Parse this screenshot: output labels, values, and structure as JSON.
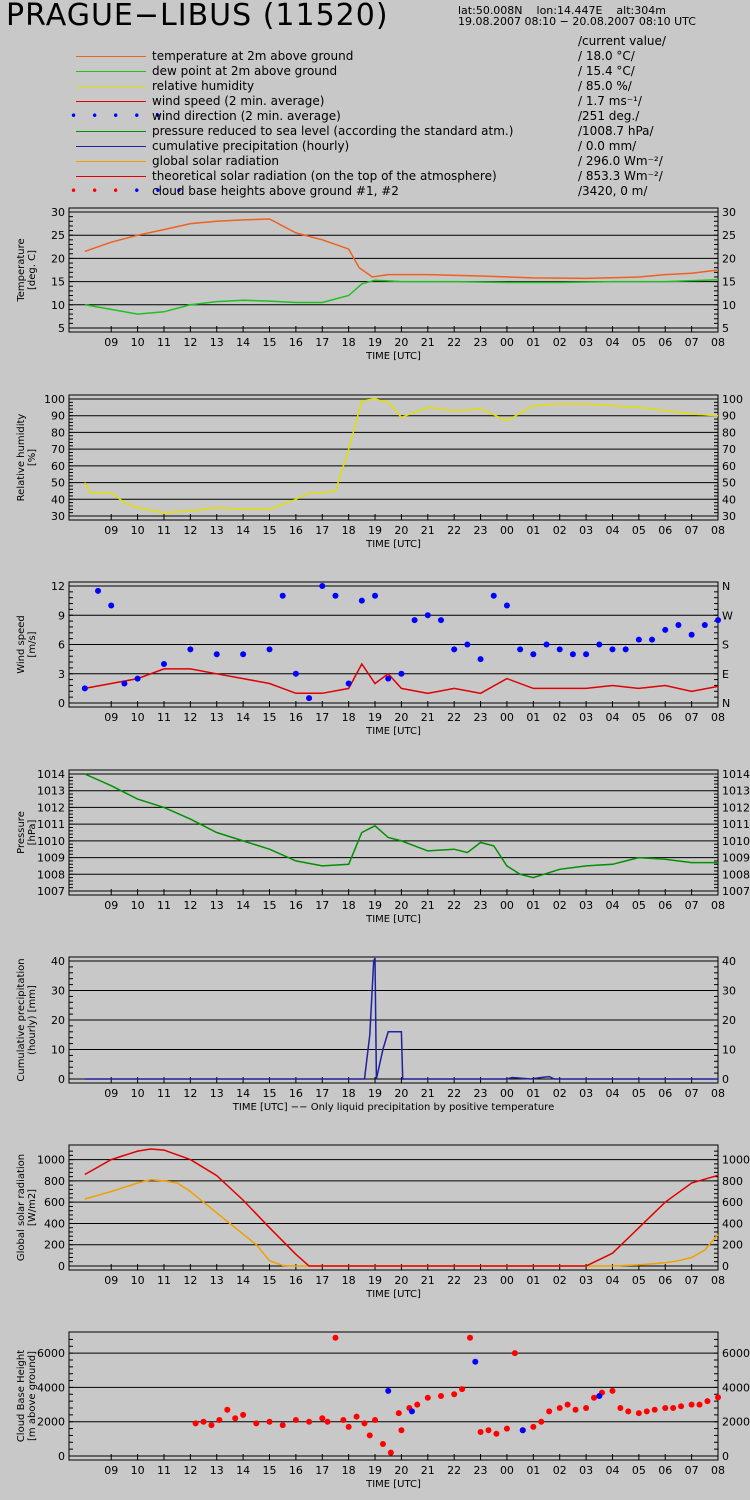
{
  "header": {
    "station": "PRAGUE−LIBUS (11520)",
    "coords": "lat:50.008N    lon:14.447E    alt:304m",
    "period": "19.08.2007 08:10 − 20.08.2007 08:10 UTC",
    "current_value_label": "/current value/"
  },
  "legend": [
    {
      "label": "temperature at 2m above ground",
      "value": "/ 18.0 °C/",
      "color": "#f06020",
      "style": "line"
    },
    {
      "label": "dew point at 2m above ground",
      "value": "/ 15.4 °C/",
      "color": "#20c020",
      "style": "line"
    },
    {
      "label": "relative humidity",
      "value": "/ 85.0 %/",
      "color": "#e0e000",
      "style": "line"
    },
    {
      "label": "wind speed (2 min. average)",
      "value": "/ 1.7 ms⁻¹/",
      "color": "#e00000",
      "style": "line"
    },
    {
      "label": "wind direction (2 min. average)",
      "value": "/251 deg./",
      "color": "#0000ff",
      "style": "dots"
    },
    {
      "label": "pressure reduced to sea level (according the standard atm.)",
      "value": "/1008.7 hPa/",
      "color": "#009000",
      "style": "line"
    },
    {
      "label": "cumulative precipitation (hourly)",
      "value": "/  0.0 mm/",
      "color": "#2020a0",
      "style": "line"
    },
    {
      "label": "global solar radiation",
      "value": "/ 296.0 Wm⁻²/",
      "color": "#f0a000",
      "style": "line"
    },
    {
      "label": "theoretical solar radiation (on the top of the atmosphere)",
      "value": "/ 853.3 Wm⁻²/",
      "color": "#e00000",
      "style": "line"
    },
    {
      "label": "cloud base heights above ground #1, #2",
      "value": "/3420,    0 m/",
      "color": "#ff0000",
      "color2": "#0000ff",
      "style": "dots2"
    }
  ],
  "chart_data": [
    {
      "type": "line",
      "ylabel": "Temperature\n[deg. C]",
      "xlabel": "TIME [UTC]",
      "x_tick_labels": [
        "09",
        "10",
        "11",
        "12",
        "13",
        "14",
        "15",
        "16",
        "17",
        "18",
        "19",
        "20",
        "21",
        "22",
        "23",
        "00",
        "01",
        "02",
        "03",
        "04",
        "05",
        "06",
        "07",
        "08"
      ],
      "ylim": [
        5,
        30
      ],
      "yticks": [
        5,
        10,
        15,
        20,
        25,
        30
      ],
      "grid": true,
      "series": [
        {
          "name": "temperature at 2m above ground",
          "color": "#f06020",
          "x": [
            0,
            1,
            2,
            3,
            4,
            5,
            6,
            7,
            8,
            9,
            10,
            10.4,
            10.9,
            11.5,
            13,
            15,
            17,
            19,
            21,
            22,
            23,
            24
          ],
          "y": [
            21.5,
            23.5,
            25,
            26.2,
            27.5,
            28,
            28.3,
            28.5,
            25.5,
            24,
            22,
            18,
            16,
            16.5,
            16.5,
            16.2,
            15.8,
            15.7,
            16,
            16.5,
            16.8,
            17.5
          ]
        },
        {
          "name": "dew point at 2m above ground",
          "color": "#20c020",
          "x": [
            0,
            1,
            2,
            3,
            4,
            5,
            6,
            7,
            8,
            9,
            10,
            10.5,
            11,
            12,
            14,
            16,
            18,
            20,
            22,
            24
          ],
          "y": [
            10,
            9,
            8,
            8.5,
            10,
            10.7,
            11,
            10.8,
            10.5,
            10.5,
            12,
            14.5,
            15.3,
            15,
            15,
            14.8,
            14.8,
            15,
            15,
            15.4
          ]
        }
      ]
    },
    {
      "type": "line",
      "ylabel": "Relative humidity\n[%]",
      "xlabel": "TIME [UTC]",
      "x_tick_labels": [
        "09",
        "10",
        "11",
        "12",
        "13",
        "14",
        "15",
        "16",
        "17",
        "18",
        "19",
        "20",
        "21",
        "22",
        "23",
        "00",
        "01",
        "02",
        "03",
        "04",
        "05",
        "06",
        "07",
        "08"
      ],
      "ylim": [
        30,
        100
      ],
      "yticks": [
        30,
        40,
        50,
        60,
        70,
        80,
        90,
        100
      ],
      "grid": true,
      "series": [
        {
          "name": "relative humidity",
          "color": "#e0e000",
          "x": [
            0,
            0.2,
            1,
            1.5,
            2,
            3,
            4,
            5,
            6,
            7,
            8,
            8.5,
            9,
            9.5,
            10,
            10.5,
            11,
            11.5,
            12,
            13,
            14,
            15,
            16,
            17,
            18,
            19,
            20,
            21,
            22,
            23,
            24
          ],
          "y": [
            50,
            44,
            44,
            38,
            35,
            32,
            33,
            35,
            34,
            34,
            40,
            44,
            44,
            45,
            70,
            99,
            100,
            98,
            89,
            95,
            93,
            94,
            87,
            96,
            97,
            97,
            96,
            95,
            93,
            91,
            90
          ]
        }
      ]
    },
    {
      "type": "scatter",
      "ylabel": "Wind speed\n[m/s]",
      "xlabel": "TIME [UTC]",
      "x_tick_labels": [
        "09",
        "10",
        "11",
        "12",
        "13",
        "14",
        "15",
        "16",
        "17",
        "18",
        "19",
        "20",
        "21",
        "22",
        "23",
        "00",
        "01",
        "02",
        "03",
        "04",
        "05",
        "06",
        "07",
        "08"
      ],
      "ylim": [
        0,
        12
      ],
      "yticks": [
        0,
        3,
        6,
        9,
        12
      ],
      "y2_tick_labels": [
        "N",
        "E",
        "S",
        "W",
        "N"
      ],
      "grid": true,
      "series": [
        {
          "name": "wind speed (2 min. average)",
          "color": "#e00000",
          "x": [
            0,
            1,
            2,
            3,
            4,
            5,
            6,
            7,
            8,
            9,
            10,
            10.5,
            11,
            11.5,
            12,
            13,
            14,
            15,
            16,
            17,
            18,
            19,
            20,
            21,
            22,
            23,
            24
          ],
          "y": [
            1.5,
            2,
            2.5,
            3.5,
            3.5,
            3,
            2.5,
            2,
            1,
            1,
            1.5,
            4,
            2,
            3,
            1.5,
            1,
            1.5,
            1,
            2.5,
            1.5,
            1.5,
            1.5,
            1.8,
            1.5,
            1.8,
            1.2,
            1.7
          ]
        },
        {
          "name": "wind direction (2 min. average)",
          "color": "#0000ff",
          "style": "dots",
          "x": [
            0,
            0.5,
            1,
            1.5,
            2,
            3,
            4,
            5,
            6,
            7,
            7.5,
            8,
            8.5,
            9,
            9.5,
            10,
            10.5,
            11,
            11.5,
            12,
            12.5,
            13,
            13.5,
            14,
            14.5,
            15,
            15.5,
            16,
            16.5,
            17,
            17.5,
            18,
            18.5,
            19,
            19.5,
            20,
            20.5,
            21,
            21.5,
            22,
            22.5,
            23,
            23.5,
            24
          ],
          "y": [
            1.5,
            11.5,
            10,
            2,
            2.5,
            4,
            5.5,
            5,
            5,
            5.5,
            11,
            3,
            0.5,
            12,
            11,
            2,
            10.5,
            11,
            2.5,
            3,
            8.5,
            9,
            8.5,
            5.5,
            6,
            4.5,
            11,
            10,
            5.5,
            5,
            6,
            5.5,
            5,
            5,
            6,
            5.5,
            5.5,
            6.5,
            6.5,
            7.5,
            8,
            7,
            8,
            8.5
          ]
        }
      ]
    },
    {
      "type": "line",
      "ylabel": "Pressure\n[hPa]",
      "xlabel": "TIME [UTC]",
      "x_tick_labels": [
        "09",
        "10",
        "11",
        "12",
        "13",
        "14",
        "15",
        "16",
        "17",
        "18",
        "19",
        "20",
        "21",
        "22",
        "23",
        "00",
        "01",
        "02",
        "03",
        "04",
        "05",
        "06",
        "07",
        "08"
      ],
      "ylim": [
        1007,
        1014
      ],
      "yticks": [
        1007,
        1008,
        1009,
        1010,
        1011,
        1012,
        1013,
        1014
      ],
      "grid": true,
      "series": [
        {
          "name": "pressure reduced to sea level",
          "color": "#009000",
          "x": [
            0,
            1,
            2,
            3,
            4,
            5,
            6,
            7,
            8,
            9,
            10,
            10.5,
            11,
            11.5,
            12,
            13,
            14,
            14.5,
            15,
            15.5,
            16,
            16.5,
            17,
            18,
            19,
            20,
            21,
            22,
            23,
            24
          ],
          "y": [
            1014,
            1013.3,
            1012.5,
            1012,
            1011.3,
            1010.5,
            1010,
            1009.5,
            1008.8,
            1008.5,
            1008.6,
            1010.5,
            1010.9,
            1010.2,
            1010,
            1009.4,
            1009.5,
            1009.3,
            1009.9,
            1009.7,
            1008.5,
            1008,
            1007.8,
            1008.3,
            1008.5,
            1008.6,
            1009,
            1008.9,
            1008.7,
            1008.7
          ]
        }
      ]
    },
    {
      "type": "line",
      "ylabel": "Cumulative precipitation\n(hourly)   [mm]",
      "xlabel": "TIME [UTC]  −− Only liquid precipitation by positive temperature",
      "x_tick_labels": [
        "09",
        "10",
        "11",
        "12",
        "13",
        "14",
        "15",
        "16",
        "17",
        "18",
        "19",
        "20",
        "21",
        "22",
        "23",
        "00",
        "01",
        "02",
        "03",
        "04",
        "05",
        "06",
        "07",
        "08"
      ],
      "ylim": [
        0,
        40
      ],
      "yticks": [
        0,
        10,
        20,
        30,
        40
      ],
      "grid": true,
      "series": [
        {
          "name": "cumulative precipitation (hourly)",
          "color": "#2020a0",
          "x": [
            0,
            10.6,
            10.8,
            10.95,
            11.0,
            11.05,
            11.3,
            11.5,
            11.9,
            12.0,
            12.05,
            16,
            16.2,
            16.9,
            17.3,
            17.6,
            17.8,
            24
          ],
          "y": [
            0,
            0,
            15,
            40,
            41,
            0,
            10,
            16,
            16,
            16,
            0,
            0,
            0.5,
            0,
            0.5,
            0.8,
            0,
            0
          ]
        }
      ]
    },
    {
      "type": "line",
      "ylabel": "Global solar radiation\n[W/m2]",
      "xlabel": "TIME [UTC]",
      "x_tick_labels": [
        "09",
        "10",
        "11",
        "12",
        "13",
        "14",
        "15",
        "16",
        "17",
        "18",
        "19",
        "20",
        "21",
        "22",
        "23",
        "00",
        "01",
        "02",
        "03",
        "04",
        "05",
        "06",
        "07",
        "08"
      ],
      "ylim": [
        0,
        1100
      ],
      "yticks": [
        0,
        200,
        400,
        600,
        800,
        1000
      ],
      "grid": true,
      "series": [
        {
          "name": "global solar radiation",
          "color": "#f0a000",
          "x": [
            0,
            1,
            2,
            2.5,
            3,
            3.5,
            4,
            4.5,
            5,
            5.5,
            6,
            6.5,
            7,
            7.5,
            8,
            9,
            10,
            19,
            20,
            21,
            22,
            22.5,
            23,
            23.5,
            24
          ],
          "y": [
            630,
            700,
            780,
            810,
            800,
            780,
            700,
            600,
            500,
            400,
            300,
            200,
            50,
            5,
            0,
            0,
            0,
            0,
            0,
            10,
            30,
            50,
            80,
            150,
            296
          ]
        },
        {
          "name": "theoretical solar radiation",
          "color": "#e00000",
          "x": [
            0,
            1,
            2,
            2.5,
            3,
            4,
            5,
            6,
            7,
            8,
            8.5,
            9,
            18,
            19,
            20,
            21,
            22,
            23,
            24
          ],
          "y": [
            860,
            1000,
            1080,
            1100,
            1090,
            1000,
            850,
            620,
            360,
            110,
            0,
            0,
            0,
            0,
            120,
            360,
            600,
            780,
            853
          ]
        }
      ]
    },
    {
      "type": "scatter",
      "ylabel": "Cloud Base Height\n[m above ground]",
      "xlabel": "TIME [UTC]",
      "x_tick_labels": [
        "09",
        "10",
        "11",
        "12",
        "13",
        "14",
        "15",
        "16",
        "17",
        "18",
        "19",
        "20",
        "21",
        "22",
        "23",
        "00",
        "01",
        "02",
        "03",
        "04",
        "05",
        "06",
        "07",
        "08"
      ],
      "ylim": [
        0,
        7000
      ],
      "yticks": [
        0,
        2000,
        4000,
        6000
      ],
      "grid": true,
      "series": [
        {
          "name": "cloud base height #1",
          "color": "#ff0000",
          "style": "dots",
          "x": [
            4.2,
            4.5,
            4.8,
            5.1,
            5.4,
            5.7,
            6,
            6.5,
            7,
            7.5,
            8,
            8.5,
            9,
            9.2,
            9.5,
            9.8,
            10,
            10.3,
            10.6,
            10.8,
            11,
            11.3,
            11.6,
            11.9,
            12,
            12.3,
            12.6,
            13,
            13.5,
            14,
            14.3,
            14.6,
            15,
            15.3,
            15.6,
            16,
            16.3,
            16.6,
            17,
            17.3,
            17.6,
            18,
            18.3,
            18.6,
            19,
            19.3,
            19.6,
            20,
            20.3,
            20.6,
            21,
            21.3,
            21.6,
            22,
            22.3,
            22.6,
            23,
            23.3,
            23.6,
            24
          ],
          "y": [
            1900,
            2000,
            1800,
            2100,
            2700,
            2200,
            2400,
            1900,
            2000,
            1800,
            2100,
            2000,
            2200,
            2000,
            6900,
            2100,
            1700,
            2300,
            1900,
            1200,
            2100,
            700,
            200,
            2500,
            1500,
            2800,
            3000,
            3400,
            3500,
            3600,
            3900,
            6900,
            1400,
            1500,
            1300,
            1600,
            6000,
            1500,
            1700,
            2000,
            2600,
            2800,
            3000,
            2700,
            2800,
            3400,
            3700,
            3800,
            2800,
            2600,
            2500,
            2600,
            2700,
            2800,
            2800,
            2900,
            3000,
            3000,
            3200,
            3420
          ]
        },
        {
          "name": "cloud base height #2",
          "color": "#0000ff",
          "style": "dots",
          "x": [
            11.5,
            12.4,
            14.8,
            16.6,
            19.5
          ],
          "y": [
            3800,
            2600,
            5500,
            1500,
            3500
          ]
        }
      ]
    }
  ]
}
